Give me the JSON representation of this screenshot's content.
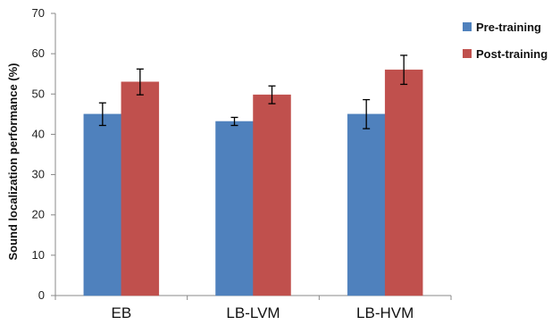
{
  "chart_data": {
    "type": "bar",
    "title": "",
    "xlabel": "",
    "ylabel": "Sound localization performance (%)",
    "ylim": [
      0,
      70
    ],
    "yticks": [
      0,
      10,
      20,
      30,
      40,
      50,
      60,
      70
    ],
    "categories": [
      "EB",
      "LB-LVM",
      "LB-HVM"
    ],
    "series": [
      {
        "name": "Pre-training",
        "color": "#4f81bd",
        "values": [
          45,
          43.2,
          45
        ],
        "errors": [
          2.8,
          1,
          3.6
        ]
      },
      {
        "name": "Post-training",
        "color": "#c0504d",
        "values": [
          53,
          49.8,
          56
        ],
        "errors": [
          3.2,
          2.2,
          3.6
        ]
      }
    ],
    "grid": false,
    "legend_position": "top-right"
  }
}
